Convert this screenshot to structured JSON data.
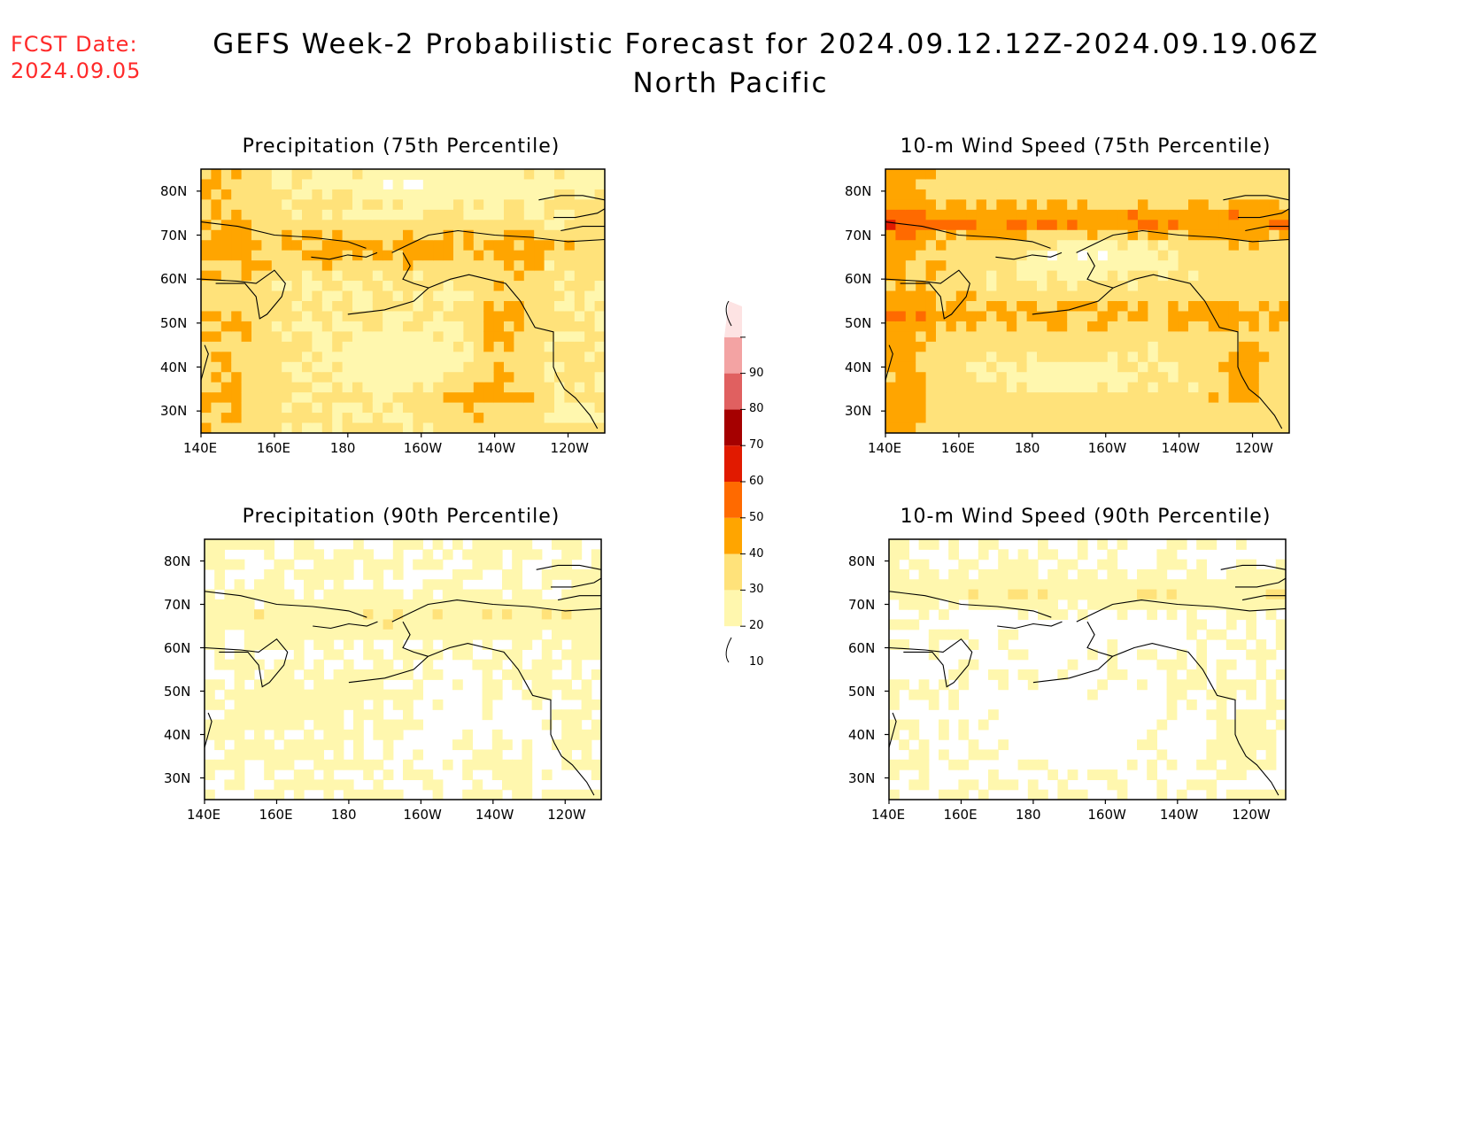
{
  "header": {
    "fcst_label": "FCST Date:",
    "fcst_date": "2024.09.05",
    "title": "GEFS Week-2 Probabilistic Forecast for 2024.09.12.12Z-2024.09.19.06Z",
    "region": "North Pacific"
  },
  "panels": [
    {
      "title": "Precipitation (75th Percentile)"
    },
    {
      "title": "10-m Wind Speed (75th Percentile)"
    },
    {
      "title": "Precipitation (90th Percentile)"
    },
    {
      "title": "10-m Wind Speed (90th Percentile)"
    }
  ],
  "axes": {
    "lat_ticks": [
      "80N",
      "70N",
      "60N",
      "50N",
      "40N",
      "30N"
    ],
    "lon_ticks": [
      "140E",
      "160E",
      "180",
      "160W",
      "140W",
      "120W"
    ]
  },
  "colorbar": {
    "levels": [
      "10",
      "20",
      "30",
      "40",
      "50",
      "60",
      "70",
      "80",
      "90"
    ],
    "colors": [
      "#ffffff",
      "#fff7ae",
      "#ffe27a",
      "#ffa500",
      "#ff6a00",
      "#e11a00",
      "#a50000",
      "#e06060",
      "#f3a3a3",
      "#fde3e3"
    ]
  }
}
